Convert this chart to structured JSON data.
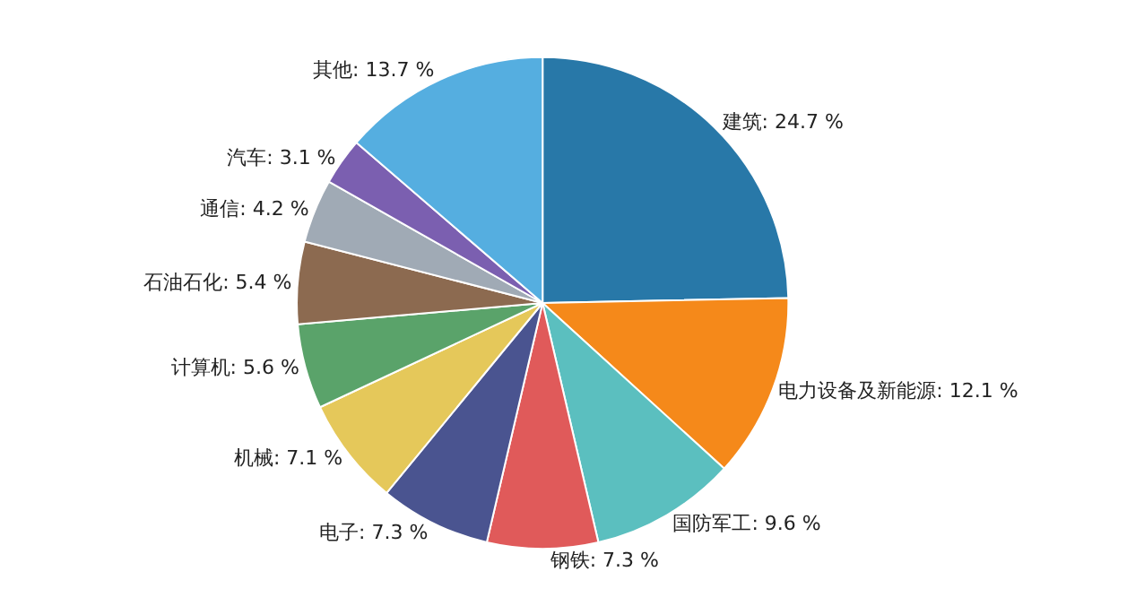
{
  "chart_data": {
    "type": "pie",
    "categories": [
      "建筑",
      "电力设备及新能源",
      "国防军工",
      "钢铁",
      "电子",
      "机械",
      "计算机",
      "石油石化",
      "通信",
      "汽车",
      "其他"
    ],
    "values": [
      24.7,
      12.1,
      9.6,
      7.3,
      7.3,
      7.1,
      5.6,
      5.4,
      4.2,
      3.1,
      13.7
    ],
    "value_labels": [
      "24.7 %",
      "12.1 %",
      "9.6 %",
      "7.3 %",
      "7.3 %",
      "7.1 %",
      "5.6 %",
      "5.4 %",
      "4.2 %",
      "3.1 %",
      "13.7 %"
    ],
    "colors": [
      "#2878a8",
      "#f5891a",
      "#5bbfbf",
      "#e05a5a",
      "#4a5490",
      "#e5c85a",
      "#5aa36a",
      "#8c6a50",
      "#a0aab5",
      "#7b5fb0",
      "#55aee0"
    ],
    "legend": false
  }
}
